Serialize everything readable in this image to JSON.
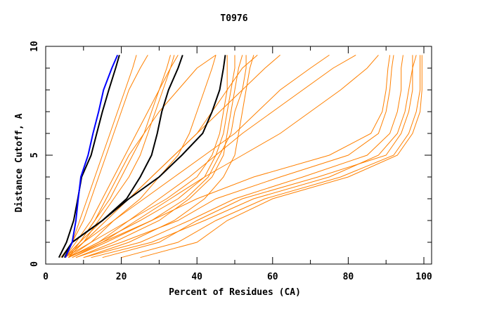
{
  "chart_data": {
    "type": "line",
    "title": "T0976",
    "xlabel": "Percent of Residues (CA)",
    "ylabel": "Distance Cutoff, A",
    "xlim": [
      0,
      102
    ],
    "ylim": [
      0,
      10
    ],
    "x_ticks": [
      "0",
      "20",
      "40",
      "60",
      "80",
      "100"
    ],
    "y_ticks": [
      "0",
      "5",
      "10"
    ],
    "grid": false,
    "colors": {
      "models": "#ff8000",
      "highlight_black": "#000000",
      "highlight_blue": "#0000ff"
    },
    "y_levels": [
      0.3,
      1,
      2,
      3,
      4,
      5,
      6,
      7,
      8,
      9,
      9.6
    ],
    "orange_series": [
      [
        8,
        20,
        35,
        45,
        62,
        80,
        88,
        90,
        91,
        91.5,
        92
      ],
      [
        10,
        25,
        38,
        50,
        68,
        85,
        91,
        93,
        94,
        94,
        94.5
      ],
      [
        15,
        30,
        40,
        52,
        72,
        90,
        94,
        96,
        97,
        97,
        97
      ],
      [
        20,
        35,
        45,
        58,
        78,
        92,
        96,
        98,
        99,
        99,
        99
      ],
      [
        6,
        15,
        28,
        40,
        55,
        75,
        86,
        89,
        90,
        90.5,
        91
      ],
      [
        12,
        28,
        42,
        55,
        75,
        88,
        93,
        95,
        96,
        97,
        98
      ],
      [
        25,
        40,
        48,
        60,
        80,
        93,
        97,
        99,
        99.5,
        99.5,
        99.5
      ],
      [
        6,
        14,
        25,
        35,
        42,
        45,
        47,
        48,
        49,
        50,
        50
      ],
      [
        8,
        18,
        30,
        38,
        44,
        47,
        48,
        49,
        50,
        51,
        52
      ],
      [
        5,
        12,
        22,
        32,
        40,
        44,
        46,
        47,
        48,
        48,
        48
      ],
      [
        10,
        22,
        34,
        42,
        47,
        50,
        51,
        52,
        53,
        54,
        55
      ],
      [
        7,
        16,
        28,
        37,
        43,
        46,
        49,
        50,
        52,
        53,
        53
      ],
      [
        6,
        14,
        22,
        30,
        38,
        45,
        52,
        60,
        68,
        76,
        82
      ],
      [
        5,
        10,
        18,
        26,
        34,
        42,
        50,
        56,
        62,
        70,
        75
      ],
      [
        7,
        15,
        24,
        33,
        42,
        52,
        62,
        70,
        78,
        85,
        88
      ],
      [
        5,
        9,
        15,
        22,
        28,
        34,
        40,
        46,
        52,
        58,
        62
      ],
      [
        5,
        8,
        12,
        15,
        18,
        21,
        24,
        27,
        30,
        33,
        35
      ],
      [
        5,
        9,
        13,
        17,
        20,
        23,
        26,
        28,
        30,
        32,
        33
      ],
      [
        6,
        10,
        14,
        18,
        22,
        25,
        27,
        29,
        31,
        33,
        34
      ],
      [
        5,
        7,
        10,
        12,
        14,
        16,
        18,
        20,
        22,
        25,
        27
      ],
      [
        6,
        9,
        13,
        16,
        19,
        22,
        26,
        30,
        35,
        40,
        45
      ],
      [
        4,
        7,
        9,
        11,
        13,
        15,
        17,
        19,
        21,
        23,
        24
      ],
      [
        5,
        10,
        16,
        22,
        28,
        34,
        40,
        44,
        48,
        52,
        56
      ],
      [
        6,
        12,
        18,
        25,
        30,
        35,
        38,
        40,
        42,
        44,
        45
      ]
    ],
    "highlight_series": [
      {
        "color": "#000000",
        "x": [
          3.5,
          5.5,
          7.4,
          8.5,
          9.5,
          12,
          13.5,
          15,
          16.7,
          18.5,
          19.5
        ]
      },
      {
        "color": "#000000",
        "x": [
          4.3,
          7,
          15,
          21.4,
          25,
          28,
          29.5,
          30.7,
          32.5,
          35,
          36.2
        ]
      },
      {
        "color": "#000000",
        "x": [
          5,
          7,
          15,
          22,
          30,
          36,
          41.5,
          44,
          46,
          47,
          47.5
        ]
      },
      {
        "color": "#0000ff",
        "x": [
          5.2,
          7,
          8,
          8.6,
          9.3,
          11.2,
          12.5,
          14,
          15.3,
          17.5,
          19
        ]
      }
    ]
  }
}
